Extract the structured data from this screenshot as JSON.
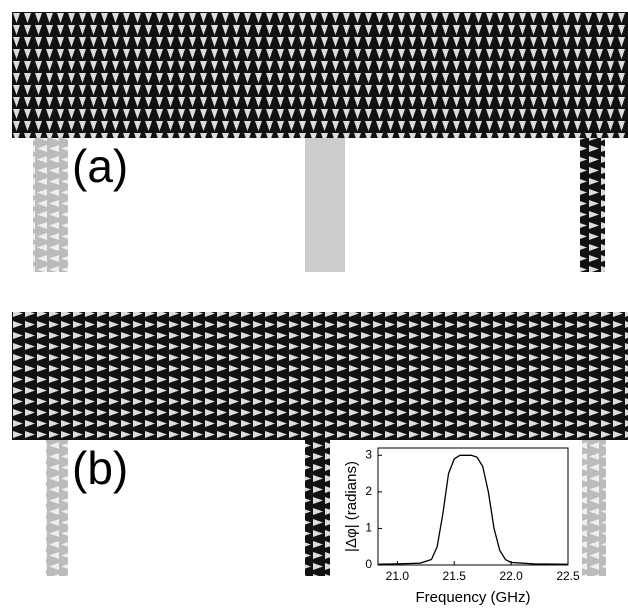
{
  "panels": [
    {
      "label": "(a)"
    },
    {
      "label": "(b)"
    }
  ],
  "chart_data": {
    "type": "line",
    "xlabel": "Frequency (GHz)",
    "ylabel": "|Δφ| (radians)",
    "x": [
      20.83,
      21.0,
      21.2,
      21.3,
      21.35,
      21.4,
      21.45,
      21.5,
      21.55,
      21.6,
      21.65,
      21.7,
      21.75,
      21.8,
      21.85,
      21.9,
      21.95,
      22.0,
      22.2,
      22.5
    ],
    "series": [
      {
        "color": "#000000",
        "values": [
          0.02,
          0.03,
          0.05,
          0.15,
          0.5,
          1.4,
          2.5,
          2.9,
          3.0,
          3.0,
          3.0,
          2.95,
          2.7,
          2.0,
          1.0,
          0.4,
          0.15,
          0.07,
          0.03,
          0.02
        ]
      }
    ],
    "xlim": [
      20.83,
      22.5
    ],
    "ylim": [
      0,
      3.2
    ],
    "xticks": [
      {
        "value": 21,
        "label": "21.0"
      },
      21.5,
      {
        "value": 22,
        "label": "22.0"
      },
      22.5
    ],
    "yticks": [
      0,
      1,
      2,
      3
    ]
  }
}
